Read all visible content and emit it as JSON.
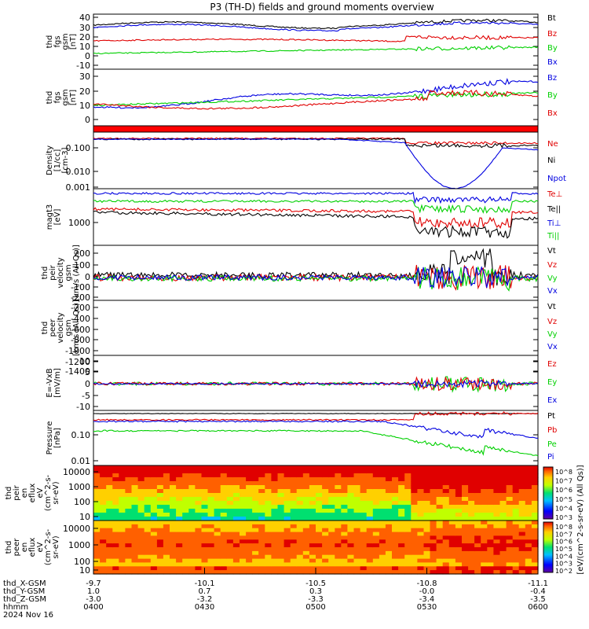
{
  "title": "P3 (TH-D) fields and ground moments overview",
  "colors": {
    "black": "#000000",
    "red": "#e00000",
    "green": "#00d000",
    "blue": "#0000e0"
  },
  "footer": {
    "date": "2024 Nov 16",
    "rows": [
      {
        "label": "thd_X-GSM",
        "values": [
          "-9.7",
          "-10.1",
          "-10.5",
          "-10.8",
          "-11.1"
        ]
      },
      {
        "label": "thd_Y-GSM",
        "values": [
          "1.0",
          "0.7",
          "0.3",
          "-0.0",
          "-0.4"
        ]
      },
      {
        "label": "thd_Z-GSM",
        "values": [
          "-3.0",
          "-3.2",
          "-3.3",
          "-3.4",
          "-3.5"
        ]
      },
      {
        "label": "hhmm",
        "values": [
          "0400",
          "0430",
          "0500",
          "0530",
          "0600"
        ]
      }
    ]
  },
  "colorbar": {
    "label": "[eV/(cm^2-s-sr-eV) (All Qs)]",
    "ticks_top": [
      "10^8",
      "10^7",
      "10^6",
      "10^5",
      "10^4",
      "10^3"
    ],
    "ticks_bottom": [
      "10^8",
      "10^7",
      "10^6",
      "10^5",
      "10^4",
      "10^3",
      "10^2"
    ]
  },
  "chart_data": [
    {
      "type": "line",
      "panel": "fgs",
      "ylabel": [
        "thd",
        "fgs",
        "gsm",
        "[nT]"
      ],
      "yticks": [
        "40",
        "30",
        "20",
        "10",
        "0",
        "-10"
      ],
      "ylim": [
        -15,
        45
      ],
      "series": [
        {
          "name": "Bt",
          "color": "black"
        },
        {
          "name": "Bz",
          "color": "red"
        },
        {
          "name": "By",
          "color": "green"
        },
        {
          "name": "Bx",
          "color": "blue"
        }
      ]
    },
    {
      "type": "line",
      "panel": "fgs_gsm",
      "ylabel": [
        "thd",
        "fgs",
        "gsm",
        "[nT]"
      ],
      "yticks": [
        "30",
        "20",
        "10",
        "0",
        "-10"
      ],
      "ylim": [
        -18,
        35
      ],
      "series": [
        {
          "name": "Bz",
          "color": "blue"
        },
        {
          "name": "By",
          "color": "green"
        },
        {
          "name": "Bx",
          "color": "red"
        }
      ]
    },
    {
      "type": "line",
      "panel": "density",
      "ylabel": [
        "Density",
        "[1/cc]",
        "[cm-3]"
      ],
      "yticks": [
        "0.100",
        "0.010",
        "0.001"
      ],
      "scale": "log",
      "series": [
        {
          "name": "Ne",
          "color": "red"
        },
        {
          "name": "Ni",
          "color": "black"
        },
        {
          "name": "Npot",
          "color": "blue"
        }
      ]
    },
    {
      "type": "line",
      "panel": "temperature",
      "ylabel": [
        "magt3",
        "[eV]"
      ],
      "yticks": [
        "1000"
      ],
      "scale": "log",
      "series": [
        {
          "name": "Te⊥",
          "color": "red"
        },
        {
          "name": "Te||",
          "color": "black"
        },
        {
          "name": "Ti⊥",
          "color": "blue"
        },
        {
          "name": "Ti||",
          "color": "green"
        }
      ]
    },
    {
      "type": "line",
      "panel": "peir_velocity",
      "ylabel": [
        "thd",
        "peir",
        "velocity",
        "gsm",
        "[km/s (All Qs)]"
      ],
      "yticks": [
        "200",
        "100",
        "0",
        "-100",
        "-200"
      ],
      "ylim": [
        -220,
        260
      ],
      "series": [
        {
          "name": "Vt",
          "color": "black"
        },
        {
          "name": "Vz",
          "color": "red"
        },
        {
          "name": "Vy",
          "color": "green"
        },
        {
          "name": "Vx",
          "color": "blue"
        }
      ]
    },
    {
      "type": "line",
      "panel": "peer_velocity",
      "ylabel": [
        "thd",
        "peer",
        "velocity",
        "gsm",
        "[km/s (All Qs)]"
      ],
      "yticks": [
        "-200",
        "-400",
        "-600",
        "-800",
        "-1000",
        "-1200",
        "-1400"
      ],
      "ylim": [
        -1500,
        -100
      ],
      "series": [
        {
          "name": "Vt",
          "color": "black"
        },
        {
          "name": "Vz",
          "color": "red"
        },
        {
          "name": "Vy",
          "color": "green"
        },
        {
          "name": "Vx",
          "color": "blue"
        }
      ]
    },
    {
      "type": "line",
      "panel": "efield",
      "ylabel": [
        "E=-VxB",
        "[mV/m]"
      ],
      "yticks": [
        "10",
        "5",
        "0",
        "-5",
        "-10"
      ],
      "ylim": [
        -12,
        10
      ],
      "series": [
        {
          "name": "Ez",
          "color": "red"
        },
        {
          "name": "Ey",
          "color": "green"
        },
        {
          "name": "Ex",
          "color": "blue"
        }
      ]
    },
    {
      "type": "line",
      "panel": "pressure",
      "ylabel": [
        "Pressure",
        "[nPa]"
      ],
      "yticks": [
        "0.10",
        "0.01"
      ],
      "scale": "log",
      "series": [
        {
          "name": "Pt",
          "color": "black"
        },
        {
          "name": "Pb",
          "color": "red"
        },
        {
          "name": "Pe",
          "color": "green"
        },
        {
          "name": "Pi",
          "color": "blue"
        }
      ]
    },
    {
      "type": "heatmap",
      "panel": "peir_eflux",
      "ylabel": [
        "thd",
        "peir",
        "en",
        "eflux",
        "eV",
        "(cm^2-s-",
        "sr-eV)"
      ],
      "yticks": [
        "10000",
        "1000",
        "100",
        "10"
      ],
      "scale": "log"
    },
    {
      "type": "heatmap",
      "panel": "peer_eflux",
      "ylabel": [
        "thd",
        "peer",
        "en",
        "eflux",
        "eV",
        "(cm^2-s-",
        "sr-eV)"
      ],
      "yticks": [
        "10000",
        "1000",
        "100",
        "10"
      ],
      "scale": "log"
    }
  ]
}
